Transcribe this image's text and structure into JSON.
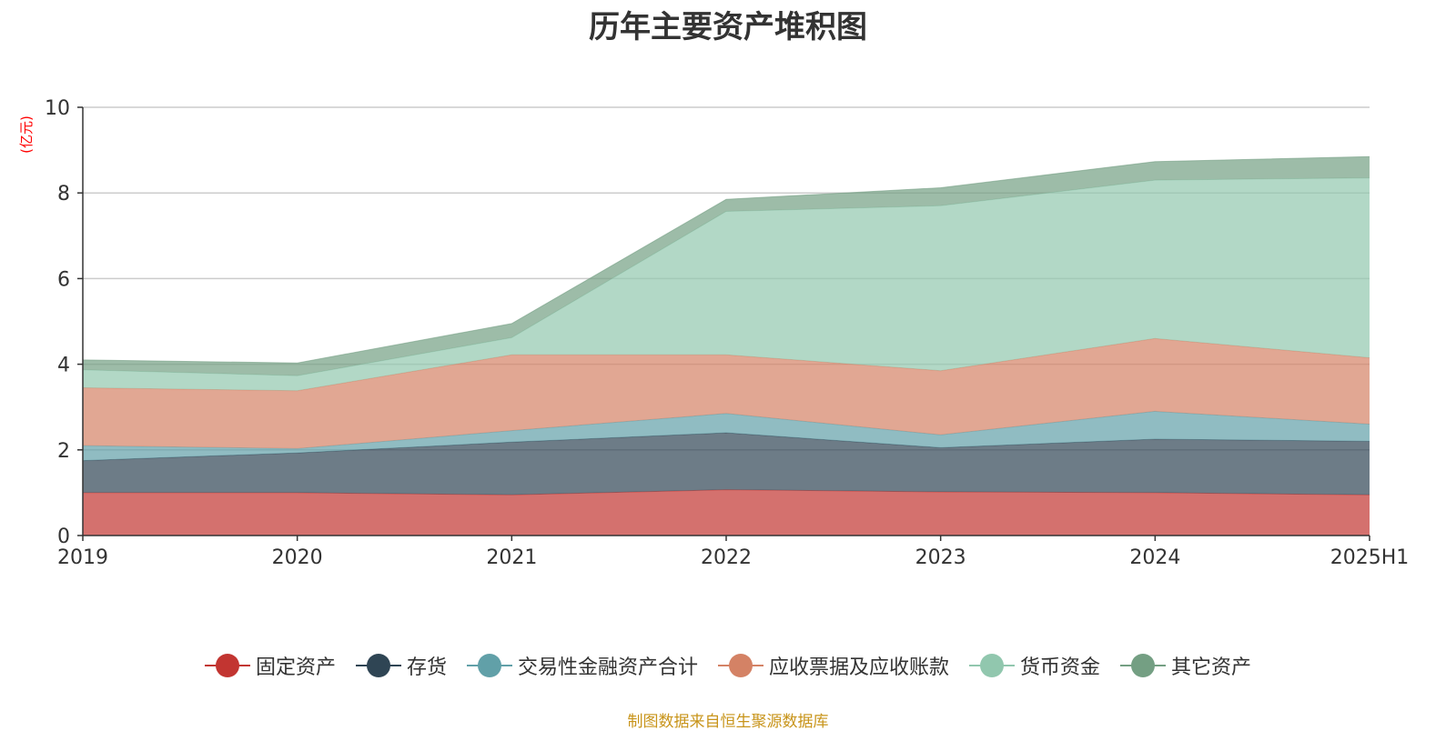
{
  "title": "历年主要资产堆积图",
  "source": "制图数据来自恒生聚源数据库",
  "chart_data": {
    "type": "area",
    "stacked": true,
    "title": "历年主要资产堆积图",
    "ylabel": "(亿元)",
    "x": [
      "2019",
      "2020",
      "2021",
      "2022",
      "2023",
      "2024",
      "2025H1"
    ],
    "ylim": [
      0,
      10
    ],
    "yticks": [
      0,
      2,
      4,
      6,
      8,
      10
    ],
    "grid": true,
    "legend_position": "bottom",
    "series": [
      {
        "name": "固定资产",
        "color": "#c23531",
        "values": [
          1.0,
          1.0,
          0.95,
          1.07,
          1.02,
          1.0,
          0.95
        ]
      },
      {
        "name": "存货",
        "color": "#2f4554",
        "values": [
          0.75,
          0.93,
          1.23,
          1.33,
          1.03,
          1.25,
          1.25
        ]
      },
      {
        "name": "交易性金融资产合计",
        "color": "#61a0a8",
        "values": [
          0.35,
          0.1,
          0.27,
          0.45,
          0.3,
          0.65,
          0.4
        ]
      },
      {
        "name": "应收票据及应收账款",
        "color": "#d48265",
        "values": [
          1.35,
          1.35,
          1.77,
          1.37,
          1.5,
          1.7,
          1.55
        ]
      },
      {
        "name": "货币资金",
        "color": "#91c7ae",
        "values": [
          0.42,
          0.35,
          0.4,
          3.35,
          3.85,
          3.7,
          4.2
        ]
      },
      {
        "name": "其它资产",
        "color": "#749f83",
        "values": [
          0.23,
          0.3,
          0.33,
          0.28,
          0.42,
          0.43,
          0.5
        ]
      }
    ]
  }
}
